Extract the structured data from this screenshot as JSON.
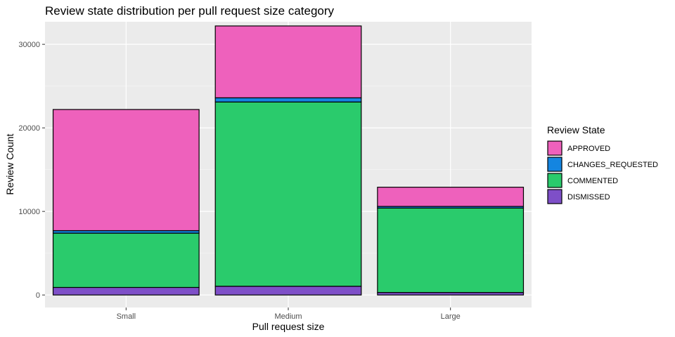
{
  "chart_data": {
    "type": "bar",
    "stacked": true,
    "title": "Review state distribution per pull request size category",
    "xlabel": "Pull request size",
    "ylabel": "Review Count",
    "categories": [
      "Small",
      "Medium",
      "Large"
    ],
    "ylim": [
      0,
      32500
    ],
    "y_ticks": [
      0,
      10000,
      20000,
      30000
    ],
    "y_tick_labels": [
      "0",
      "10000",
      "20000",
      "30000"
    ],
    "grid": true,
    "legend": {
      "title": "Review State",
      "position": "right"
    },
    "series": [
      {
        "name": "DISMISSED",
        "color": "#7E4FC8",
        "values": [
          900,
          1050,
          300
        ]
      },
      {
        "name": "COMMENTED",
        "color": "#2ACB6C",
        "values": [
          6500,
          22050,
          10100
        ]
      },
      {
        "name": "CHANGES_REQUESTED",
        "color": "#1485E0",
        "values": [
          300,
          500,
          200
        ]
      },
      {
        "name": "APPROVED",
        "color": "#EE61BC",
        "values": [
          14500,
          8600,
          2300
        ]
      }
    ],
    "legend_order": [
      "APPROVED",
      "CHANGES_REQUESTED",
      "COMMENTED",
      "DISMISSED"
    ]
  }
}
